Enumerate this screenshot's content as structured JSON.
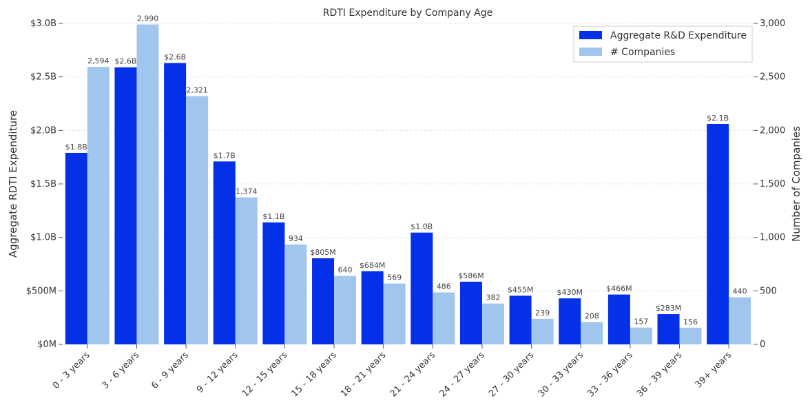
{
  "chart_data": {
    "type": "bar",
    "title": "RDTI Expenditure by Company Age",
    "ylabel_left": "Aggregate RDTI Expenditure",
    "ylabel_right": "Number of Companies",
    "categories": [
      "0 - 3 years",
      "3 - 6 years",
      "6 - 9 years",
      "9 - 12 years",
      "12 - 15 years",
      "15 - 18 years",
      "18 - 21 years",
      "21 - 24 years",
      "24 - 27 years",
      "27 - 30 years",
      "30 - 33 years",
      "33 - 36 years",
      "36 - 39 years",
      "39+ years"
    ],
    "series": [
      {
        "name": "Aggregate R&D Expenditure",
        "axis": "left",
        "color": "#0430e8",
        "values": [
          1.79,
          2.59,
          2.63,
          1.71,
          1.14,
          0.805,
          0.684,
          1.045,
          0.586,
          0.455,
          0.43,
          0.466,
          0.283,
          2.06
        ],
        "labels": [
          "$1.8B",
          "$2.6B",
          "$2.6B",
          "$1.7B",
          "$1.1B",
          "$805M",
          "$684M",
          "$1.0B",
          "$586M",
          "$455M",
          "$430M",
          "$466M",
          "$283M",
          "$2.1B"
        ]
      },
      {
        "name": "# Companies",
        "axis": "right",
        "color": "#a1c6ee",
        "values": [
          2594,
          2990,
          2321,
          1374,
          934,
          640,
          569,
          486,
          382,
          239,
          208,
          157,
          156,
          440
        ],
        "labels": [
          "2,594",
          "2,990",
          "2,321",
          "1,374",
          "934",
          "640",
          "569",
          "486",
          "382",
          "239",
          "208",
          "157",
          "156",
          "440"
        ]
      }
    ],
    "y_left": {
      "unit": "billions of dollars",
      "ylim": [
        0,
        3.0
      ],
      "ticks": [
        0,
        0.5,
        1.0,
        1.5,
        2.0,
        2.5,
        3.0
      ],
      "tick_labels": [
        "$0M",
        "$500M",
        "$1.0B",
        "$1.5B",
        "$2.0B",
        "$2.5B",
        "$3.0B"
      ]
    },
    "y_right": {
      "ylim": [
        0,
        3000
      ],
      "ticks": [
        0,
        500,
        1000,
        1500,
        2000,
        2500,
        3000
      ],
      "tick_labels": [
        "0",
        "500",
        "1,000",
        "1,500",
        "2,000",
        "2,500",
        "3,000"
      ]
    },
    "grid": true,
    "legend": "top-right"
  }
}
